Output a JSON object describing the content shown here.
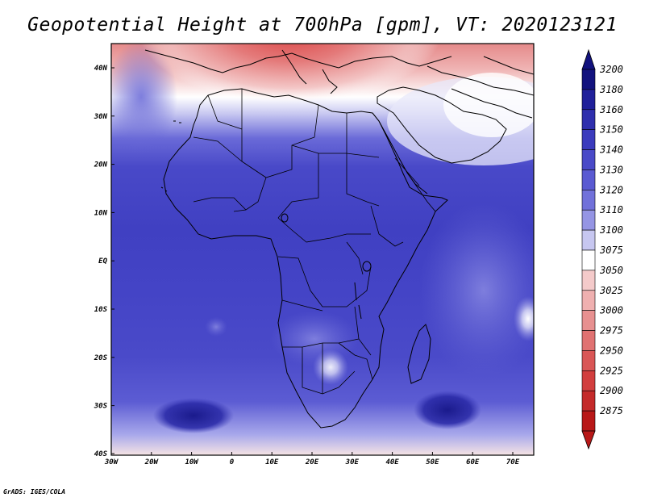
{
  "title": "Geopotential Height at 700hPa [gpm], VT: 2020123121",
  "credit": "GrADS: IGES/COLA",
  "map": {
    "lat_labels": [
      "40N",
      "30N",
      "20N",
      "10N",
      "EQ",
      "10S",
      "20S",
      "30S",
      "40S"
    ],
    "lon_labels": [
      "30W",
      "20W",
      "10W",
      "0",
      "10E",
      "20E",
      "30E",
      "40E",
      "50E",
      "60E",
      "70E"
    ]
  },
  "colorbar": {
    "levels": [
      "3200",
      "3180",
      "3160",
      "3150",
      "3140",
      "3130",
      "3120",
      "3110",
      "3100",
      "3075",
      "3050",
      "3025",
      "3000",
      "2975",
      "2950",
      "2925",
      "2900",
      "2875"
    ],
    "colors": [
      "#12127e",
      "#20209a",
      "#2f2fad",
      "#3b3bbd",
      "#4a4ac8",
      "#5a5ad2",
      "#7171da",
      "#9595e4",
      "#c7c7f0",
      "#ffffff",
      "#f4caca",
      "#efb0b0",
      "#e79090",
      "#e07272",
      "#d95656",
      "#d23e3e",
      "#c42a2a",
      "#b81818"
    ]
  }
}
